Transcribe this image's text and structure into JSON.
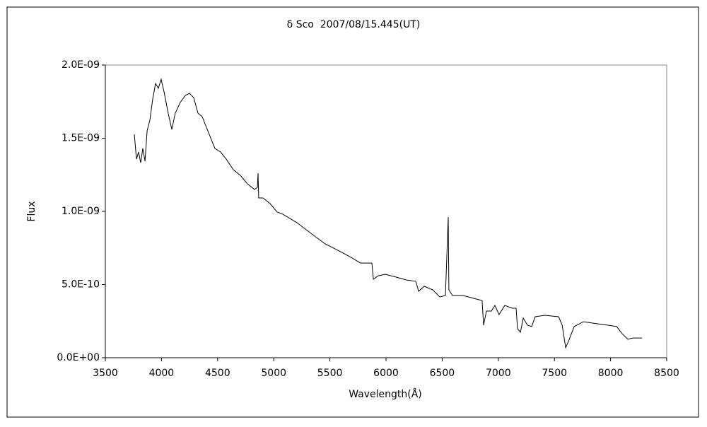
{
  "chart_data": {
    "type": "line",
    "title": "δ Sco  2007/08/15.445(UT)",
    "xlabel": "Wavelength(Å)",
    "ylabel": "Flux",
    "xlim": [
      3500,
      8500
    ],
    "xticks": [
      3500,
      4000,
      4500,
      5000,
      5500,
      6000,
      6500,
      7000,
      7500,
      8000,
      8500
    ],
    "ylim": [
      0,
      2e-09
    ],
    "yticks": [
      {
        "value": 0,
        "label": "0.0E+00"
      },
      {
        "value": 5e-10,
        "label": "5.0E-10"
      },
      {
        "value": 1e-09,
        "label": "1.0E-09"
      },
      {
        "value": 1.5e-09,
        "label": "1.5E-09"
      },
      {
        "value": 2e-09,
        "label": "2.0E-09"
      }
    ],
    "series": [
      {
        "color": "#000000",
        "x": [
          3758,
          3777,
          3796,
          3815,
          3834,
          3853,
          3872,
          3897,
          3922,
          3947,
          3972,
          3997,
          4023,
          4060,
          4092,
          4123,
          4167,
          4212,
          4249,
          4287,
          4325,
          4363,
          4400,
          4451,
          4476,
          4526,
          4577,
          4640,
          4703,
          4766,
          4829,
          4854,
          4860,
          4866,
          4904,
          4967,
          5030,
          5080,
          5206,
          5332,
          5458,
          5584,
          5710,
          5773,
          5874,
          5887,
          5931,
          5994,
          6088,
          6183,
          6265,
          6290,
          6340,
          6416,
          6479,
          6529,
          6548,
          6554,
          6560,
          6592,
          6686,
          6781,
          6856,
          6869,
          6894,
          6938,
          6970,
          7007,
          7058,
          7127,
          7159,
          7171,
          7197,
          7222,
          7260,
          7297,
          7329,
          7411,
          7537,
          7569,
          7600,
          7632,
          7676,
          7758,
          7884,
          7978,
          8054,
          8104,
          8154,
          8198,
          8280
        ],
        "values": [
          1.527e-09,
          1.357e-09,
          1.406e-09,
          1.333e-09,
          1.43e-09,
          1.343e-09,
          1.551e-09,
          1.623e-09,
          1.768e-09,
          1.874e-09,
          1.841e-09,
          1.903e-09,
          1.816e-09,
          1.671e-09,
          1.56e-09,
          1.671e-09,
          1.744e-09,
          1.792e-09,
          1.807e-09,
          1.778e-09,
          1.671e-09,
          1.647e-09,
          1.575e-09,
          1.478e-09,
          1.43e-09,
          1.406e-09,
          1.357e-09,
          1.285e-09,
          1.246e-09,
          1.188e-09,
          1.15e-09,
          1.164e-09,
          1.261e-09,
          1.092e-09,
          1.092e-09,
          1.053e-09,
          9.95e-10,
          9.81e-10,
          9.23e-10,
          8.5e-10,
          7.78e-10,
          7.29e-10,
          6.76e-10,
          6.47e-10,
          6.47e-10,
          5.36e-10,
          5.6e-10,
          5.7e-10,
          5.51e-10,
          5.31e-10,
          5.22e-10,
          4.54e-10,
          4.88e-10,
          4.64e-10,
          4.15e-10,
          4.25e-10,
          8.26e-10,
          9.61e-10,
          4.64e-10,
          4.25e-10,
          4.25e-10,
          4.06e-10,
          3.91e-10,
          2.22e-10,
          3.19e-10,
          3.19e-10,
          3.57e-10,
          2.95e-10,
          3.57e-10,
          3.38e-10,
          3.38e-10,
          1.98e-10,
          1.74e-10,
          2.71e-10,
          2.22e-10,
          2.13e-10,
          2.8e-10,
          2.9e-10,
          2.8e-10,
          2.22e-10,
          6.8e-11,
          1.26e-10,
          2.13e-10,
          2.46e-10,
          2.32e-10,
          2.22e-10,
          2.13e-10,
          1.64e-10,
          1.26e-10,
          1.35e-10,
          1.35e-10
        ]
      }
    ]
  }
}
